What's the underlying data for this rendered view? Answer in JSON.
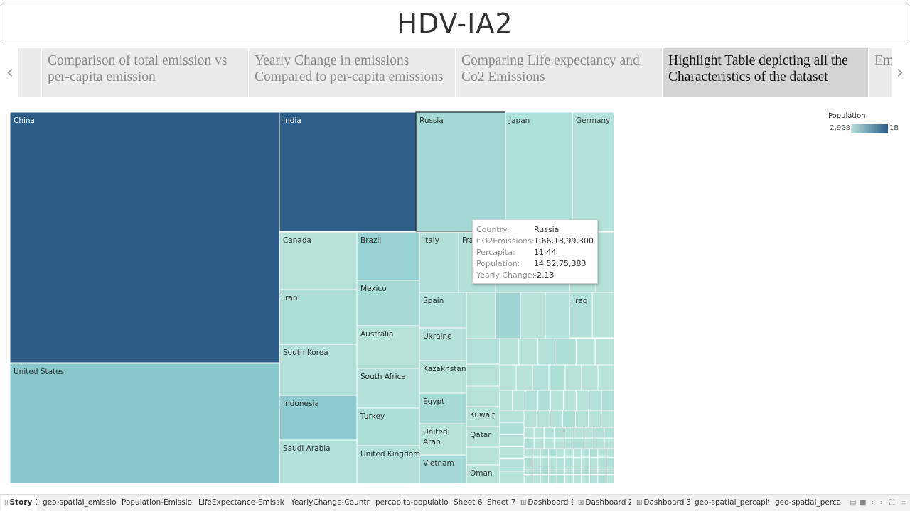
{
  "title": "HDV-IA2",
  "story_points": [
    {
      "lines": [
        "",
        ""
      ]
    },
    {
      "lines": [
        "Comparison of total emission vs",
        "per-capita emission"
      ]
    },
    {
      "lines": [
        "Yearly Change in emissions",
        "Compared to per-capita emissions"
      ]
    },
    {
      "lines": [
        "Comparing Life expectancy and",
        "Co2 Emissions"
      ]
    },
    {
      "lines": [
        "Highlight Table depicting all the",
        "Characteristics of the dataset"
      ]
    },
    {
      "lines": [
        "Emi",
        ""
      ]
    }
  ],
  "nav": {
    "prev_icon": "chevron-left-icon",
    "next_icon": "chevron-right-icon",
    "prev_glyph": "‹",
    "next_glyph": "›"
  },
  "chart_data": {
    "type": "treemap",
    "size_measure": "CO2Emissions",
    "color_measure": "Population",
    "color_range": {
      "min_label": "2,928",
      "max_label": "1B",
      "min_color": "#b8dfda",
      "max_color": "#2b5c89"
    },
    "labeled_cells": [
      {
        "label": "China",
        "color": "#2d5e89",
        "dark_text": true
      },
      {
        "label": "United States",
        "color": "#86c7cc"
      },
      {
        "label": "India",
        "color": "#2e5f8a",
        "dark_text": true
      },
      {
        "label": "Russia",
        "color": "#a3d7d3",
        "highlighted": true
      },
      {
        "label": "Japan",
        "color": "#ade0d8"
      },
      {
        "label": "Germany",
        "color": "#b3e2da"
      },
      {
        "label": "Canada",
        "color": "#b6e2da"
      },
      {
        "label": "Brazil",
        "color": "#98d1d1"
      },
      {
        "label": "Iran",
        "color": "#addfd7"
      },
      {
        "label": "Mexico",
        "color": "#a6dad5"
      },
      {
        "label": "Australia",
        "color": "#b6e2da"
      },
      {
        "label": "South Korea",
        "color": "#b3e1d9"
      },
      {
        "label": "Indonesia",
        "color": "#8ecbce"
      },
      {
        "label": "South Africa",
        "color": "#b3e1d9"
      },
      {
        "label": "Turkey",
        "color": "#addfd7"
      },
      {
        "label": "Saudi Arabia",
        "color": "#b3e1d9"
      },
      {
        "label": "United Kingdom",
        "color": "#b0e0d8"
      },
      {
        "label": "Italy",
        "color": "#b0e0d8"
      },
      {
        "label": "Fra",
        "color": "#b0e0d8"
      },
      {
        "label": "Spain",
        "color": "#b3e1d9"
      },
      {
        "label": "Ukraine",
        "color": "#b3e1d9"
      },
      {
        "label": "Kazakhstan",
        "color": "#b6e2da"
      },
      {
        "label": "Egypt",
        "color": "#a6dad5"
      },
      {
        "label": "United Arab",
        "color": "#b6e2da"
      },
      {
        "label": "Vietnam",
        "color": "#a3d8d4"
      },
      {
        "label": "Kuwait",
        "color": "#b8e3db"
      },
      {
        "label": "Qatar",
        "color": "#b8e3db"
      },
      {
        "label": "Oman",
        "color": "#b8e3db"
      },
      {
        "label": "Iraq",
        "color": "#b0e0d8"
      }
    ]
  },
  "tooltip": {
    "rows": [
      {
        "key": "Country:",
        "value": "Russia"
      },
      {
        "key": "CO2Emissions:",
        "value": "1,66,18,99,300"
      },
      {
        "key": "Percapita:",
        "value": "11.44"
      },
      {
        "key": "Population:",
        "value": "14,52,75,383"
      },
      {
        "key": "Yearly Change:",
        "value": "-2.13"
      }
    ]
  },
  "legend": {
    "title": "Population",
    "min": "2,928",
    "max": "1B"
  },
  "sheet_tabs": [
    {
      "label": "Story 1",
      "active": true,
      "icon": "story-icon"
    },
    {
      "label": "geo-spatial_emission"
    },
    {
      "label": "Population-Emission"
    },
    {
      "label": "LifeExpectance-Emission"
    },
    {
      "label": "YearlyChange-Country"
    },
    {
      "label": "percapita-population"
    },
    {
      "label": "Sheet 6"
    },
    {
      "label": "Sheet 7"
    },
    {
      "label": "Dashboard 1",
      "icon": "dashboard-icon"
    },
    {
      "label": "Dashboard 2",
      "icon": "dashboard-icon"
    },
    {
      "label": "Dashboard 3",
      "icon": "dashboard-icon"
    },
    {
      "label": "geo-spatial_percapita"
    },
    {
      "label": "geo-spatial_percapita"
    }
  ],
  "bottom_icons": [
    "grid-view-icon",
    "list-view-icon",
    "scroll-left-icon",
    "scroll-right-icon",
    "fullscreen-icon",
    "present-icon"
  ]
}
